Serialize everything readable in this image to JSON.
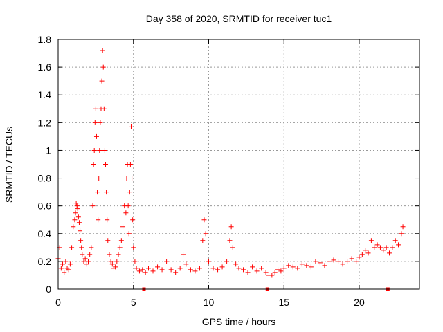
{
  "chart_data": {
    "type": "scatter",
    "title": "Day 358 of 2020, SRMTID for receiver tuc1",
    "xlabel": "GPS time / hours",
    "ylabel": "SRMTID / TECUs",
    "xlim": [
      0,
      24
    ],
    "ylim": [
      0,
      1.8
    ],
    "xticks": [
      "0",
      "5",
      "10",
      "15",
      "20"
    ],
    "yticks": [
      "0",
      "0.2",
      "0.4",
      "0.6",
      "0.8",
      "1",
      "1.2",
      "1.4",
      "1.6",
      "1.8"
    ],
    "grid": true,
    "marker": "plus",
    "color": "#ff0000",
    "series": [
      {
        "name": "SRMTID",
        "x": [
          0.0,
          0.1,
          0.2,
          0.3,
          0.4,
          0.5,
          0.6,
          0.7,
          0.8,
          0.9,
          1.0,
          1.1,
          1.15,
          1.2,
          1.25,
          1.3,
          1.35,
          1.4,
          1.45,
          1.5,
          1.55,
          1.6,
          1.7,
          1.8,
          1.9,
          2.0,
          2.1,
          2.2,
          2.3,
          2.35,
          2.4,
          2.45,
          2.5,
          2.55,
          2.6,
          2.65,
          2.7,
          2.75,
          2.8,
          2.85,
          2.9,
          2.95,
          3.0,
          3.05,
          3.1,
          3.15,
          3.2,
          3.25,
          3.3,
          3.4,
          3.5,
          3.6,
          3.7,
          3.8,
          3.9,
          4.0,
          4.1,
          4.2,
          4.3,
          4.4,
          4.5,
          4.55,
          4.6,
          4.65,
          4.7,
          4.75,
          4.8,
          4.85,
          4.9,
          4.95,
          5.0,
          5.1,
          5.2,
          5.4,
          5.6,
          5.8,
          6.0,
          6.3,
          6.6,
          6.9,
          7.2,
          7.5,
          7.8,
          8.1,
          8.3,
          8.5,
          8.8,
          9.1,
          9.4,
          9.6,
          9.7,
          9.8,
          10.0,
          10.3,
          10.6,
          10.9,
          11.2,
          11.4,
          11.5,
          11.6,
          11.8,
          12.0,
          12.3,
          12.6,
          12.9,
          13.2,
          13.5,
          13.8,
          14.0,
          14.2,
          14.4,
          14.6,
          14.8,
          15.0,
          15.3,
          15.6,
          15.9,
          16.2,
          16.5,
          16.8,
          17.1,
          17.4,
          17.7,
          18.0,
          18.3,
          18.6,
          18.9,
          19.2,
          19.5,
          19.8,
          20.0,
          20.2,
          20.4,
          20.6,
          20.8,
          21.0,
          21.2,
          21.4,
          21.6,
          21.8,
          22.0,
          22.2,
          22.4,
          22.6,
          22.8,
          22.9
        ],
        "y": [
          0.22,
          0.3,
          0.15,
          0.18,
          0.12,
          0.2,
          0.15,
          0.14,
          0.18,
          0.3,
          0.45,
          0.5,
          0.55,
          0.62,
          0.6,
          0.58,
          0.52,
          0.48,
          0.42,
          0.35,
          0.3,
          0.25,
          0.2,
          0.22,
          0.18,
          0.2,
          0.25,
          0.3,
          0.6,
          0.9,
          1.0,
          1.2,
          1.3,
          1.1,
          0.7,
          0.5,
          0.8,
          1.0,
          1.2,
          1.3,
          1.5,
          1.72,
          1.6,
          1.3,
          1.0,
          0.9,
          0.7,
          0.5,
          0.35,
          0.25,
          0.2,
          0.18,
          0.15,
          0.16,
          0.2,
          0.25,
          0.3,
          0.35,
          0.45,
          0.6,
          0.55,
          0.8,
          0.9,
          0.6,
          0.4,
          0.7,
          0.9,
          1.17,
          0.8,
          0.5,
          0.3,
          0.2,
          0.15,
          0.13,
          0.14,
          0.12,
          0.15,
          0.13,
          0.16,
          0.14,
          0.2,
          0.14,
          0.12,
          0.15,
          0.25,
          0.18,
          0.14,
          0.13,
          0.15,
          0.35,
          0.5,
          0.4,
          0.2,
          0.15,
          0.14,
          0.16,
          0.2,
          0.35,
          0.45,
          0.3,
          0.18,
          0.15,
          0.14,
          0.12,
          0.16,
          0.13,
          0.15,
          0.12,
          0.1,
          0.1,
          0.12,
          0.14,
          0.13,
          0.15,
          0.17,
          0.16,
          0.15,
          0.18,
          0.17,
          0.16,
          0.2,
          0.19,
          0.17,
          0.2,
          0.21,
          0.2,
          0.18,
          0.2,
          0.22,
          0.2,
          0.23,
          0.25,
          0.28,
          0.26,
          0.35,
          0.3,
          0.32,
          0.3,
          0.28,
          0.3,
          0.26,
          0.3,
          0.35,
          0.32,
          0.4,
          0.45
        ]
      }
    ],
    "axis_markers_x": [
      5.7,
      13.9,
      21.9
    ]
  }
}
